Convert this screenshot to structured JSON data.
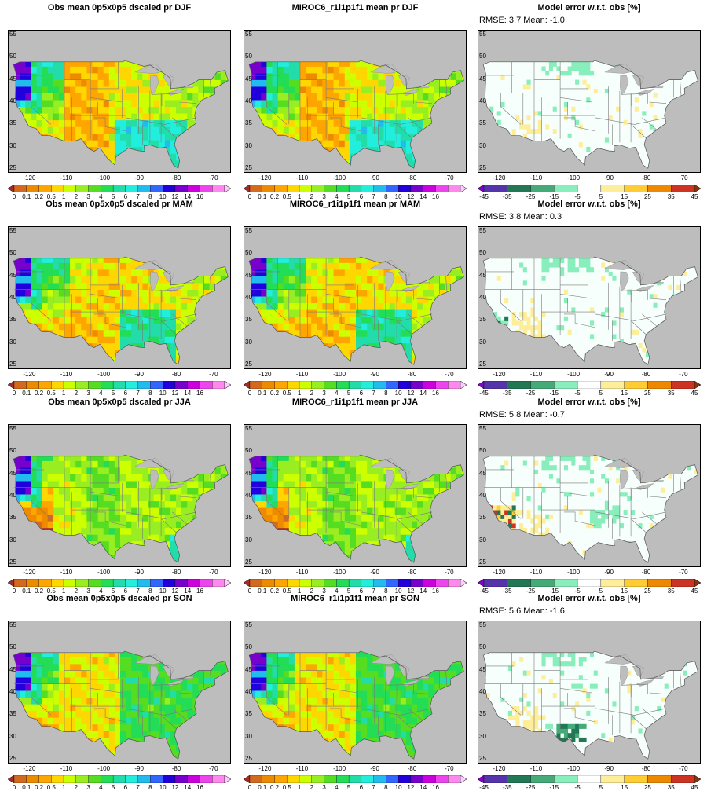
{
  "figure": {
    "rows": [
      {
        "season": "DJF",
        "panels": [
          {
            "title": "Obs mean 0p5x0p5 dscaled pr DJF",
            "type": "precip",
            "stats": ""
          },
          {
            "title": "MIROC6_r1i1p1f1 mean pr DJF",
            "type": "precip",
            "stats": ""
          },
          {
            "title": "Model error w.r.t. obs [%]",
            "type": "error",
            "stats": "RMSE: 3.7  Mean: -1.0"
          }
        ]
      },
      {
        "season": "MAM",
        "panels": [
          {
            "title": "Obs mean 0p5x0p5 dscaled pr MAM",
            "type": "precip",
            "stats": ""
          },
          {
            "title": "MIROC6_r1i1p1f1 mean pr MAM",
            "type": "precip",
            "stats": ""
          },
          {
            "title": "Model error w.r.t. obs [%]",
            "type": "error",
            "stats": "RMSE: 3.8  Mean: 0.3"
          }
        ]
      },
      {
        "season": "JJA",
        "panels": [
          {
            "title": "Obs mean 0p5x0p5 dscaled pr JJA",
            "type": "precip",
            "stats": ""
          },
          {
            "title": "MIROC6_r1i1p1f1 mean pr JJA",
            "type": "precip",
            "stats": ""
          },
          {
            "title": "Model error w.r.t. obs [%]",
            "type": "error",
            "stats": "RMSE: 5.8  Mean: -0.7"
          }
        ]
      },
      {
        "season": "SON",
        "panels": [
          {
            "title": "Obs mean 0p5x0p5 dscaled pr SON",
            "type": "precip",
            "stats": ""
          },
          {
            "title": "MIROC6_r1i1p1f1 mean pr SON",
            "type": "precip",
            "stats": ""
          },
          {
            "title": "Model error w.r.t. obs [%]",
            "type": "error",
            "stats": "RMSE: 5.6  Mean: -1.6"
          }
        ]
      }
    ],
    "lat_ticks": [
      "25",
      "30",
      "35",
      "40",
      "45",
      "50",
      "55"
    ],
    "lon_ticks": [
      "-120",
      "-110",
      "-100",
      "-90",
      "-80",
      "-70"
    ],
    "precip_colorbar": {
      "labels": [
        "0",
        "0.1",
        "0.2",
        "0.5",
        "1",
        "2",
        "3",
        "4",
        "5",
        "6",
        "7",
        "8",
        "10",
        "12",
        "14",
        "16"
      ],
      "colors": [
        "#a52a2a",
        "#d2691e",
        "#ee8a00",
        "#ffa500",
        "#ffd700",
        "#ccff00",
        "#99ee22",
        "#55dd22",
        "#22dd55",
        "#22ddaa",
        "#22eedd",
        "#22bbee",
        "#3366ff",
        "#2200dd",
        "#7700cc",
        "#cc00dd",
        "#ee44ee",
        "#ff88ee",
        "#ffccff"
      ]
    },
    "error_colorbar": {
      "labels": [
        "-45",
        "-35",
        "-25",
        "-15",
        "-5",
        "5",
        "15",
        "25",
        "35",
        "45"
      ],
      "colors": [
        "#8800cc",
        "#5533aa",
        "#227755",
        "#44aa77",
        "#88eebb",
        "#ffffff",
        "#ffee99",
        "#ffcc33",
        "#ee8800",
        "#cc3322",
        "#883311"
      ]
    },
    "colors": {
      "land_mask": "#bdbdbd",
      "error_background": "#f6fffb",
      "state_borders": "#7a7a7a"
    }
  }
}
